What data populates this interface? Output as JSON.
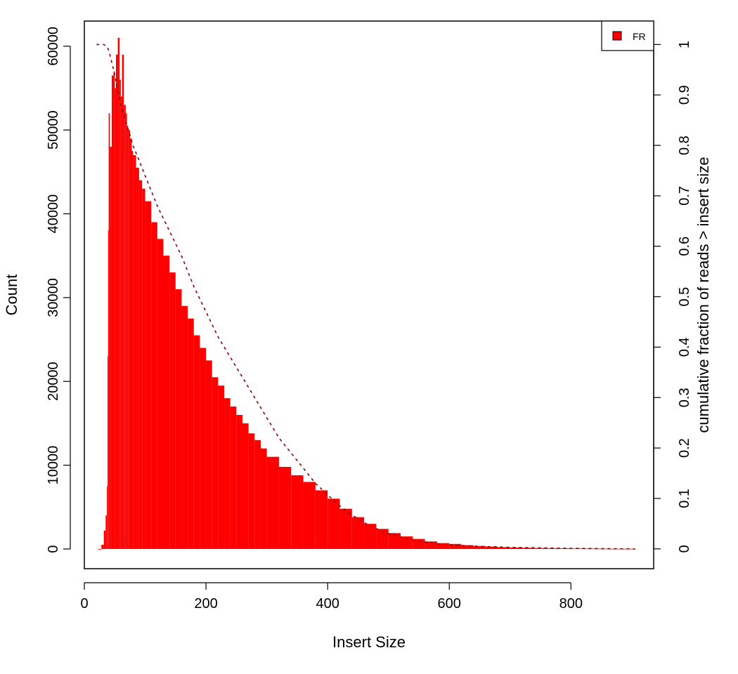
{
  "chart_data": {
    "type": "bar",
    "title": "",
    "xlabel": "Insert Size",
    "ylabel": "Count",
    "y2label": "cumulative fraction of reads > insert size",
    "xlim": [
      0,
      936
    ],
    "ylim": [
      -2350,
      63000
    ],
    "y2lim": [
      -0.0393,
      1.0465
    ],
    "xticks": [
      0,
      200,
      400,
      600,
      800
    ],
    "xtick_labels": [
      "0",
      "200",
      "400",
      "600",
      "800"
    ],
    "yticks": [
      0,
      10000,
      20000,
      30000,
      40000,
      50000,
      60000
    ],
    "ytick_labels": [
      "0",
      "10000",
      "20000",
      "30000",
      "40000",
      "50000",
      "60000"
    ],
    "y2ticks": [
      0,
      0.1,
      0.2,
      0.3,
      0.4,
      0.5,
      0.6,
      0.7,
      0.8,
      0.9,
      1
    ],
    "y2tick_labels": [
      "0",
      "0.1",
      "0.2",
      "0.3",
      "0.4",
      "0.5",
      "0.6",
      "0.7",
      "0.8",
      "0.9",
      "1"
    ],
    "grid": false,
    "legend": {
      "position": "top-right",
      "entries": [
        {
          "label": "FR",
          "color": "#ff0000"
        }
      ]
    },
    "series": [
      {
        "name": "FR",
        "type": "bar",
        "axis": "left",
        "color": "#ff0000",
        "x": [
          22,
          28,
          32,
          35,
          37,
          38,
          39,
          40,
          42,
          45,
          48,
          50,
          52,
          55,
          58,
          60,
          62,
          65,
          68,
          70,
          72,
          75,
          78,
          80,
          85,
          90,
          95,
          100,
          110,
          120,
          130,
          140,
          150,
          160,
          170,
          180,
          190,
          200,
          210,
          220,
          230,
          240,
          250,
          260,
          270,
          280,
          290,
          300,
          320,
          340,
          360,
          380,
          400,
          420,
          440,
          460,
          480,
          500,
          520,
          540,
          560,
          580,
          600,
          620,
          640,
          660,
          680,
          700,
          720,
          740,
          760,
          780,
          800,
          820,
          840,
          860,
          880,
          900,
          905
        ],
        "values": [
          0,
          500,
          2200,
          4000,
          7500,
          23000,
          38000,
          52000,
          48000,
          56500,
          57000,
          55000,
          59000,
          61000,
          56000,
          54000,
          59000,
          53000,
          52000,
          50500,
          50000,
          49000,
          47500,
          47000,
          45500,
          44000,
          43000,
          41500,
          39000,
          37000,
          35000,
          33000,
          31000,
          29000,
          27500,
          25500,
          24000,
          22500,
          20500,
          19500,
          18000,
          17000,
          16000,
          15000,
          13800,
          13000,
          12000,
          11000,
          9800,
          8800,
          8000,
          7000,
          6000,
          4800,
          3800,
          3000,
          2400,
          1900,
          1500,
          1200,
          900,
          700,
          600,
          450,
          350,
          280,
          220,
          170,
          140,
          110,
          90,
          75,
          60,
          50,
          40,
          30,
          25,
          20,
          15
        ]
      },
      {
        "name": "cumulative fraction of reads > insert size",
        "type": "line",
        "style": "dashed",
        "axis": "right",
        "color": "#8b0000",
        "x": [
          20,
          32,
          38,
          42,
          46,
          50,
          55,
          60,
          70,
          80,
          90,
          100,
          120,
          140,
          160,
          180,
          200,
          220,
          240,
          260,
          280,
          300,
          320,
          340,
          360,
          380,
          400,
          420,
          440,
          460,
          480,
          500,
          520,
          540,
          560,
          580,
          600,
          650,
          700,
          750,
          800,
          850,
          905
        ],
        "values": [
          1.0,
          1.0,
          0.995,
          0.98,
          0.96,
          0.94,
          0.91,
          0.88,
          0.84,
          0.8,
          0.77,
          0.74,
          0.68,
          0.63,
          0.58,
          0.52,
          0.47,
          0.42,
          0.38,
          0.34,
          0.3,
          0.26,
          0.22,
          0.19,
          0.16,
          0.13,
          0.107,
          0.085,
          0.067,
          0.052,
          0.04,
          0.03,
          0.023,
          0.017,
          0.013,
          0.01,
          0.008,
          0.005,
          0.003,
          0.002,
          0.001,
          0.0005,
          0.0
        ]
      }
    ]
  }
}
